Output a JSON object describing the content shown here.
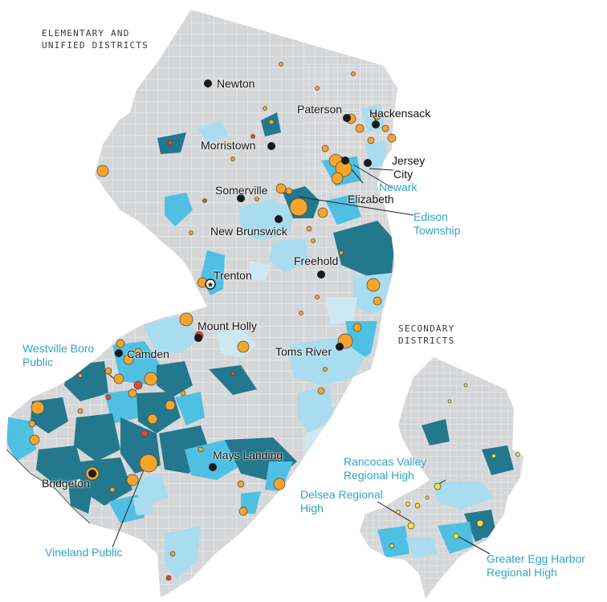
{
  "panels": {
    "main_title_line1": "ELEMENTARY AND",
    "main_title_line2": "UNIFIED DISTRICTS",
    "inset_title_line1": "SECONDARY",
    "inset_title_line2": "DISTRICTS"
  },
  "cities": {
    "newton": "Newton",
    "paterson": "Paterson",
    "hackensack": "Hackensack",
    "morristown": "Morristown",
    "jersey_city_line1": "Jersey",
    "jersey_city_line2": "City",
    "elizabeth": "Elizabeth",
    "somerville": "Somerville",
    "new_brunswick": "New Brunswick",
    "freehold": "Freehold",
    "trenton": "Trenton",
    "mount_holly": "Mount Holly",
    "camden": "Camden",
    "toms_river": "Toms River",
    "mays_landing": "Mays Landing",
    "bridgeton": "Bridgeton"
  },
  "districts": {
    "newark": "Newark",
    "edison_line1": "Edison",
    "edison_line2": "Township",
    "westville_line1": "Westville Boro",
    "westville_line2": "Public",
    "vineland": "Vineland Public",
    "rancocas_line1": "Rancocas Valley",
    "rancocas_line2": "Regional High",
    "delsea_line1": "Delsea Regional",
    "delsea_line2": "High",
    "egg_harbor_line1": "Greater Egg Harbor",
    "egg_harbor_line2": "Regional High"
  },
  "colors": {
    "land": "#d5d6d8",
    "border": "#ffffff",
    "dark_teal": "#23788d",
    "mid_blue": "#4fc0e2",
    "light_blue": "#a9dcee",
    "pale_blue": "#cfe9f3",
    "orange_dot": "#f6a42a",
    "red_dot": "#e34a2f",
    "yellow_dot": "#f5e23a",
    "city_dot": "#1a1a1a",
    "district_label": "#2fa4c6"
  },
  "icons": {
    "capital": "star-icon"
  }
}
